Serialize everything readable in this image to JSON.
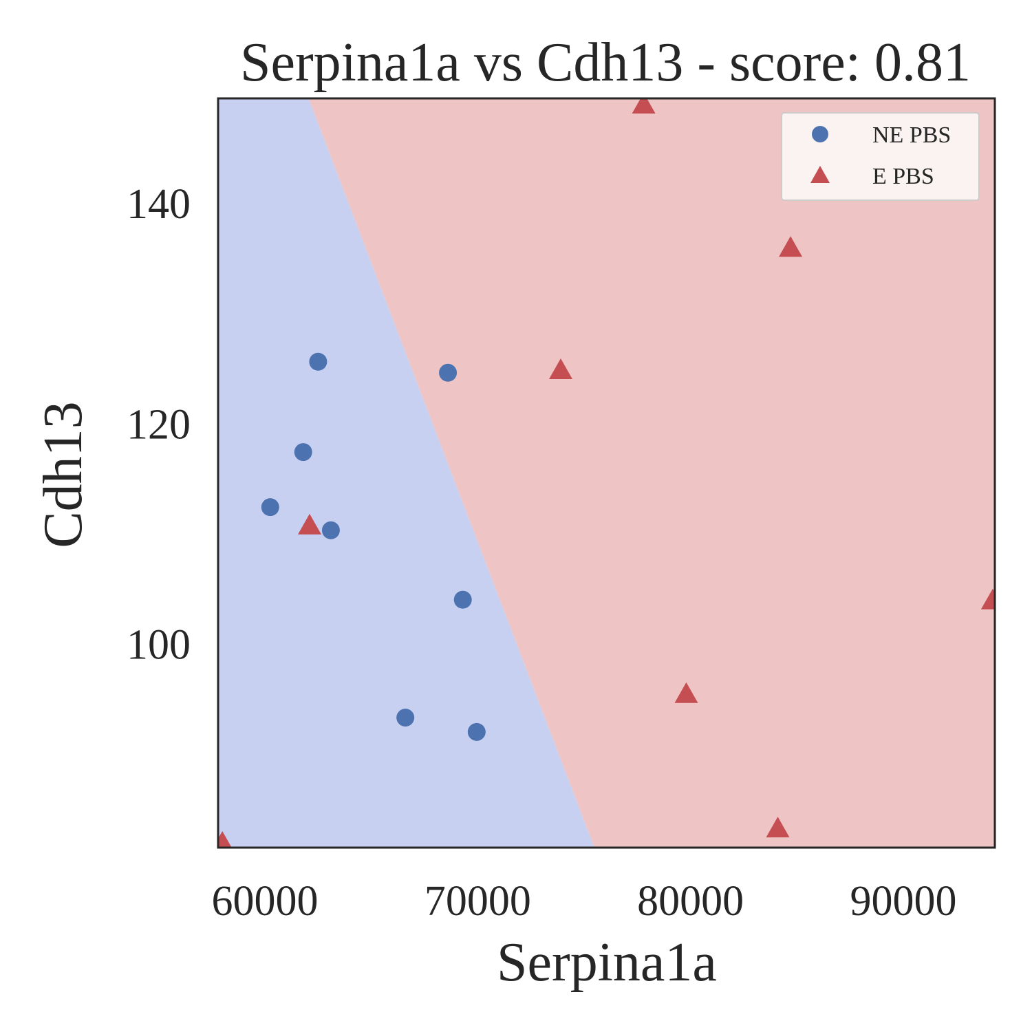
{
  "chart_data": {
    "type": "scatter",
    "title": "Serpina1a vs Cdh13 - score: 0.81",
    "xlabel": "Serpina1a",
    "ylabel": "Cdh13",
    "xlim": [
      57800,
      94300
    ],
    "ylim": [
      81.5,
      149.5
    ],
    "xticks": [
      60000,
      70000,
      80000,
      90000
    ],
    "yticks": [
      100,
      120,
      140
    ],
    "xtick_labels": [
      "60000",
      "70000",
      "80000",
      "90000"
    ],
    "ytick_labels": [
      "100",
      "120",
      "140"
    ],
    "grid": false,
    "legend_position": "top-right",
    "decision_boundary": {
      "line": [
        [
          62050,
          149.5
        ],
        [
          75480,
          81.5
        ]
      ],
      "left_class": "NE PBS",
      "right_class": "E PBS",
      "left_color": "#c8d0f1",
      "right_color": "#eec4c4"
    },
    "series": [
      {
        "name": "NE PBS",
        "marker": "circle",
        "color": "#4c72b0",
        "points": [
          {
            "x": 62500,
            "y": 125.6
          },
          {
            "x": 61800,
            "y": 117.4
          },
          {
            "x": 60250,
            "y": 112.4
          },
          {
            "x": 63100,
            "y": 110.3
          },
          {
            "x": 68600,
            "y": 124.6
          },
          {
            "x": 69300,
            "y": 104.0
          },
          {
            "x": 66600,
            "y": 93.3
          },
          {
            "x": 69950,
            "y": 92.0
          }
        ]
      },
      {
        "name": "E PBS",
        "marker": "triangle",
        "color": "#c44e52",
        "points": [
          {
            "x": 77800,
            "y": 149.0
          },
          {
            "x": 84700,
            "y": 136.0
          },
          {
            "x": 73900,
            "y": 124.9
          },
          {
            "x": 62100,
            "y": 110.8
          },
          {
            "x": 94200,
            "y": 104.0
          },
          {
            "x": 79800,
            "y": 95.5
          },
          {
            "x": 84100,
            "y": 83.3
          },
          {
            "x": 58000,
            "y": 82.0
          }
        ]
      }
    ]
  }
}
